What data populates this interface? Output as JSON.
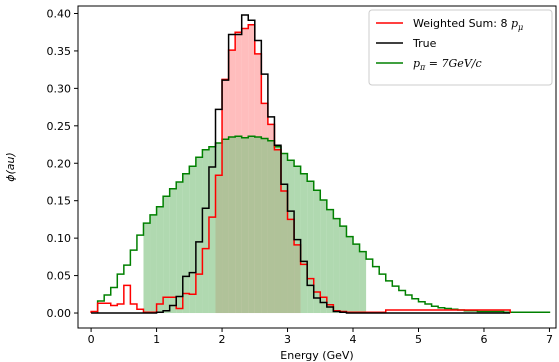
{
  "chart_data": {
    "type": "line",
    "title": "",
    "xlabel": "Energy (GeV)",
    "ylabel": "ϕ(au)",
    "xlim": [
      -0.2,
      7.1
    ],
    "ylim": [
      -0.02,
      0.41
    ],
    "xticks": [
      0,
      1,
      2,
      3,
      4,
      5,
      6,
      7
    ],
    "xtick_labels": [
      "0",
      "1",
      "2",
      "3",
      "4",
      "5",
      "6",
      "7"
    ],
    "yticks": [
      0.0,
      0.05,
      0.1,
      0.15,
      0.2,
      0.25,
      0.3,
      0.35,
      0.4
    ],
    "ytick_labels": [
      "0.00",
      "0.05",
      "0.10",
      "0.15",
      "0.20",
      "0.25",
      "0.30",
      "0.35",
      "0.40"
    ],
    "grid": false,
    "legend_position": "top-right",
    "series": [
      {
        "name": "Weighted Sum: 8 p_μ",
        "legend_parts": [
          "Weighted Sum: 8 ",
          "p",
          "μ"
        ],
        "color": "#ff0000",
        "fill_color": "#ff9999",
        "shaded_range": [
          1.9,
          3.2
        ],
        "edges": [
          0.0,
          0.1,
          0.2,
          0.3,
          0.4,
          0.5,
          0.6,
          0.7,
          0.8,
          0.9,
          1.0,
          1.1,
          1.2,
          1.3,
          1.4,
          1.5,
          1.6,
          1.7,
          1.8,
          1.9,
          2.0,
          2.1,
          2.2,
          2.3,
          2.4,
          2.5,
          2.6,
          2.7,
          2.8,
          2.9,
          3.0,
          3.1,
          3.2,
          3.3,
          3.4,
          3.5,
          3.6,
          3.7,
          3.8,
          3.9,
          4.0,
          4.1,
          4.2,
          4.3,
          4.4,
          4.5,
          4.6,
          4.7,
          4.8,
          4.9,
          5.0,
          5.1,
          5.2,
          5.3,
          5.4,
          5.5,
          5.6,
          5.7,
          5.8,
          5.9,
          6.0,
          6.1,
          6.2,
          6.3,
          6.4
        ],
        "values": [
          0.002,
          0.013,
          0.013,
          0.01,
          0.012,
          0.037,
          0.012,
          0.005,
          0.001,
          0.001,
          0.012,
          0.021,
          0.021,
          0.006,
          0.026,
          0.025,
          0.052,
          0.086,
          0.128,
          0.184,
          0.312,
          0.351,
          0.375,
          0.38,
          0.385,
          0.346,
          0.28,
          0.252,
          0.218,
          0.163,
          0.125,
          0.091,
          0.065,
          0.046,
          0.028,
          0.021,
          0.011,
          0.003,
          0.002,
          0.001,
          0.001,
          0.001,
          0.001,
          0.001,
          0.001,
          0.004,
          0.004,
          0.004,
          0.004,
          0.004,
          0.004,
          0.004,
          0.004,
          0.004,
          0.004,
          0.004,
          0.004,
          0.004,
          0.004,
          0.004,
          0.004,
          0.004,
          0.004,
          0.004
        ]
      },
      {
        "name": "True",
        "legend_parts": [
          "True"
        ],
        "color": "#000000",
        "edges": [
          0.0,
          0.1,
          0.2,
          0.3,
          0.4,
          0.5,
          0.6,
          0.7,
          0.8,
          0.9,
          1.0,
          1.1,
          1.2,
          1.3,
          1.4,
          1.5,
          1.6,
          1.7,
          1.8,
          1.9,
          2.0,
          2.1,
          2.2,
          2.3,
          2.4,
          2.5,
          2.6,
          2.7,
          2.8,
          2.9,
          3.0,
          3.1,
          3.2,
          3.3,
          3.4,
          3.5,
          3.6,
          3.7,
          3.8,
          3.9,
          4.0,
          4.1,
          4.2,
          4.3,
          4.4,
          4.5,
          4.6,
          4.7,
          4.8,
          4.9,
          5.0,
          5.1,
          5.2,
          5.3,
          5.4,
          5.5,
          5.6,
          5.7,
          5.8,
          5.9,
          6.0,
          6.1,
          6.2,
          6.3,
          6.4
        ],
        "values": [
          0.0,
          0.0,
          0.0,
          0.0,
          0.0,
          0.0,
          0.0,
          0.0,
          0.0,
          0.0,
          0.001,
          0.003,
          0.01,
          0.022,
          0.049,
          0.054,
          0.095,
          0.14,
          0.195,
          0.272,
          0.311,
          0.372,
          0.372,
          0.398,
          0.391,
          0.364,
          0.319,
          0.262,
          0.224,
          0.172,
          0.136,
          0.098,
          0.069,
          0.037,
          0.02,
          0.014,
          0.008,
          0.002,
          0.001,
          0.0,
          0.0,
          0.0,
          0.0,
          0.0,
          0.0,
          0.0,
          0.0,
          0.0,
          0.0,
          0.0,
          0.0,
          0.0,
          0.0,
          0.0,
          0.0,
          0.0,
          0.0,
          0.0,
          0.0,
          0.0,
          0.0,
          0.0,
          0.0,
          0.0
        ]
      },
      {
        "name": "p_π = 7GeV/c",
        "legend_parts": [
          "p",
          "π",
          " = 7GeV/c"
        ],
        "color": "#008000",
        "fill_color": "#86c586",
        "shaded_range": [
          0.8,
          4.2
        ],
        "edges": [
          0.1,
          0.2,
          0.3,
          0.4,
          0.5,
          0.6,
          0.7,
          0.8,
          0.9,
          1.0,
          1.1,
          1.2,
          1.3,
          1.4,
          1.5,
          1.6,
          1.7,
          1.8,
          1.9,
          2.0,
          2.1,
          2.2,
          2.3,
          2.4,
          2.5,
          2.6,
          2.7,
          2.8,
          2.9,
          3.0,
          3.1,
          3.2,
          3.3,
          3.4,
          3.5,
          3.6,
          3.7,
          3.8,
          3.9,
          4.0,
          4.1,
          4.2,
          4.3,
          4.4,
          4.5,
          4.6,
          4.7,
          4.8,
          4.9,
          5.0,
          5.1,
          5.2,
          5.3,
          5.4,
          5.5,
          5.6,
          5.7,
          5.8,
          5.9,
          6.0,
          6.1,
          6.2,
          6.3,
          6.4,
          6.5,
          6.6,
          6.7,
          6.8,
          6.9,
          7.0
        ],
        "values": [
          0.016,
          0.024,
          0.034,
          0.052,
          0.064,
          0.084,
          0.104,
          0.12,
          0.131,
          0.142,
          0.156,
          0.166,
          0.175,
          0.186,
          0.196,
          0.208,
          0.218,
          0.222,
          0.227,
          0.232,
          0.235,
          0.236,
          0.234,
          0.236,
          0.235,
          0.233,
          0.23,
          0.222,
          0.213,
          0.204,
          0.196,
          0.186,
          0.176,
          0.164,
          0.151,
          0.138,
          0.126,
          0.116,
          0.102,
          0.092,
          0.082,
          0.072,
          0.062,
          0.052,
          0.043,
          0.036,
          0.03,
          0.024,
          0.019,
          0.015,
          0.012,
          0.009,
          0.007,
          0.006,
          0.005,
          0.004,
          0.003,
          0.003,
          0.002,
          0.002,
          0.002,
          0.002,
          0.001,
          0.001,
          0.001,
          0.001,
          0.001,
          0.001,
          0.001
        ]
      }
    ]
  }
}
